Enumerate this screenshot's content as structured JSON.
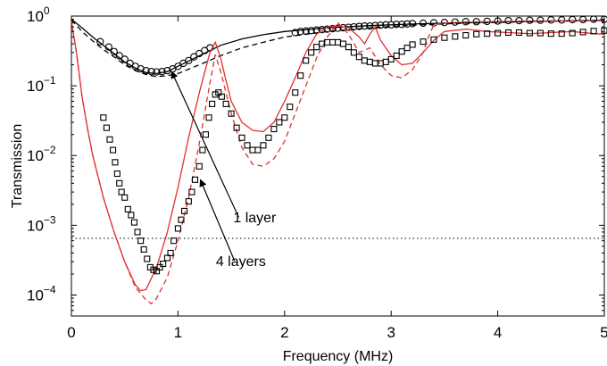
{
  "chart_data": {
    "type": "line",
    "title": "",
    "xlabel": "Frequency (MHz)",
    "ylabel": "Transmission",
    "xlim": [
      0,
      5
    ],
    "ylim": [
      5e-05,
      1
    ],
    "yscale": "log",
    "xticks": [
      0,
      1,
      2,
      3,
      4,
      5
    ],
    "yticks": [
      {
        "value": 1,
        "base": "10",
        "exp": "0"
      },
      {
        "value": 0.1,
        "base": "10",
        "exp": "−1"
      },
      {
        "value": 0.01,
        "base": "10",
        "exp": "−2"
      },
      {
        "value": 0.001,
        "base": "10",
        "exp": "−3"
      },
      {
        "value": 0.0001,
        "base": "10",
        "exp": "−4"
      }
    ],
    "grid": false,
    "reference_line": {
      "y": 0.00065,
      "style": "dotted",
      "color": "#000000"
    },
    "annotations": [
      {
        "text": "1 layer",
        "text_at": [
          1.72,
          0.0011
        ],
        "arrow_from": [
          1.57,
          0.0013
        ],
        "arrow_to": [
          0.94,
          0.16
        ]
      },
      {
        "text": "4 layers",
        "text_at": [
          1.59,
          0.00026
        ],
        "arrow_from": [
          1.53,
          0.00031
        ],
        "arrow_to": [
          1.21,
          0.0045
        ]
      }
    ],
    "series": [
      {
        "style": "solid",
        "color": "#000000",
        "marker": "none",
        "x": [
          0,
          0.1,
          0.2,
          0.3,
          0.4,
          0.5,
          0.6,
          0.7,
          0.8,
          0.9,
          1.0,
          1.2,
          1.4,
          1.6,
          1.8,
          2.0,
          2.4,
          2.8,
          3.2,
          3.6,
          4.0,
          4.5,
          5.0
        ],
        "y": [
          0.9,
          0.68,
          0.5,
          0.38,
          0.29,
          0.22,
          0.18,
          0.155,
          0.15,
          0.16,
          0.19,
          0.27,
          0.38,
          0.47,
          0.54,
          0.6,
          0.68,
          0.73,
          0.77,
          0.8,
          0.82,
          0.85,
          0.87
        ]
      },
      {
        "style": "dashed",
        "color": "#000000",
        "marker": "none",
        "x": [
          0,
          0.1,
          0.2,
          0.3,
          0.4,
          0.5,
          0.6,
          0.7,
          0.8,
          0.9,
          1.0,
          1.2,
          1.4,
          1.6,
          1.8,
          2.0,
          2.4,
          2.8,
          3.2,
          3.6,
          4.0,
          4.5,
          5.0
        ],
        "y": [
          0.88,
          0.6,
          0.44,
          0.33,
          0.26,
          0.2,
          0.165,
          0.145,
          0.135,
          0.14,
          0.15,
          0.2,
          0.27,
          0.35,
          0.42,
          0.5,
          0.6,
          0.68,
          0.74,
          0.78,
          0.81,
          0.84,
          0.86
        ]
      },
      {
        "style": "none",
        "color": "#000000",
        "marker": "circle",
        "x": [
          0.27,
          0.35,
          0.4,
          0.45,
          0.5,
          0.55,
          0.6,
          0.65,
          0.7,
          0.75,
          0.8,
          0.85,
          0.9,
          0.95,
          1.0,
          1.05,
          1.1,
          1.15,
          1.2,
          1.25,
          1.3,
          2.1,
          2.15,
          2.2,
          2.25,
          2.3,
          2.35,
          2.4,
          2.45,
          2.5,
          2.55,
          2.6,
          2.65,
          2.7,
          2.75,
          2.8,
          2.85,
          2.9,
          2.95,
          3.0,
          3.05,
          3.1,
          3.15,
          3.2,
          3.3,
          3.4,
          3.5,
          3.6,
          3.7,
          3.8,
          3.9,
          4.0,
          4.1,
          4.2,
          4.3,
          4.4,
          4.5,
          4.6,
          4.7,
          4.8,
          4.9,
          5.0
        ],
        "y": [
          0.43,
          0.36,
          0.31,
          0.27,
          0.24,
          0.21,
          0.19,
          0.175,
          0.165,
          0.16,
          0.158,
          0.16,
          0.165,
          0.175,
          0.19,
          0.21,
          0.23,
          0.26,
          0.29,
          0.32,
          0.35,
          0.58,
          0.6,
          0.61,
          0.62,
          0.63,
          0.64,
          0.65,
          0.66,
          0.67,
          0.68,
          0.69,
          0.7,
          0.71,
          0.72,
          0.72,
          0.73,
          0.74,
          0.75,
          0.75,
          0.76,
          0.76,
          0.77,
          0.78,
          0.79,
          0.8,
          0.81,
          0.82,
          0.83,
          0.83,
          0.84,
          0.85,
          0.86,
          0.86,
          0.87,
          0.87,
          0.88,
          0.88,
          0.89,
          0.89,
          0.9,
          0.9
        ]
      },
      {
        "style": "solid",
        "color": "#e03030",
        "marker": "none",
        "x": [
          0,
          0.05,
          0.1,
          0.15,
          0.2,
          0.3,
          0.4,
          0.5,
          0.6,
          0.65,
          0.7,
          0.8,
          0.9,
          1.0,
          1.1,
          1.2,
          1.3,
          1.35,
          1.4,
          1.45,
          1.5,
          1.6,
          1.7,
          1.8,
          1.9,
          2.0,
          2.1,
          2.2,
          2.3,
          2.4,
          2.5,
          2.6,
          2.7,
          2.75,
          2.8,
          2.85,
          2.9,
          3.0,
          3.1,
          3.2,
          3.3,
          3.4,
          3.5,
          3.7,
          3.9,
          4.1,
          4.3,
          4.5,
          4.7,
          4.9,
          5.0
        ],
        "y": [
          0.85,
          0.28,
          0.07,
          0.025,
          0.01,
          0.0025,
          0.0008,
          0.0003,
          0.00014,
          0.000115,
          0.00012,
          0.00025,
          0.0008,
          0.0035,
          0.018,
          0.08,
          0.3,
          0.42,
          0.25,
          0.12,
          0.06,
          0.03,
          0.023,
          0.022,
          0.03,
          0.06,
          0.13,
          0.3,
          0.55,
          0.7,
          0.72,
          0.68,
          0.5,
          0.4,
          0.55,
          0.7,
          0.45,
          0.27,
          0.2,
          0.21,
          0.3,
          0.45,
          0.6,
          0.65,
          0.6,
          0.58,
          0.56,
          0.58,
          0.6,
          0.56,
          0.55
        ]
      },
      {
        "style": "dashed",
        "color": "#e03030",
        "marker": "none",
        "x": [
          0,
          0.05,
          0.1,
          0.15,
          0.2,
          0.3,
          0.4,
          0.5,
          0.6,
          0.7,
          0.75,
          0.8,
          0.9,
          1.0,
          1.1,
          1.2,
          1.3,
          1.35,
          1.4,
          1.5,
          1.6,
          1.7,
          1.8,
          1.9,
          2.0,
          2.1,
          2.2,
          2.3,
          2.4,
          2.5,
          2.6,
          2.7,
          2.8,
          2.9,
          3.0,
          3.1,
          3.2,
          3.3,
          3.35,
          3.4,
          3.5,
          3.7,
          3.9,
          4.1,
          4.3,
          4.5,
          4.7,
          4.9,
          5.0
        ],
        "y": [
          0.85,
          0.28,
          0.07,
          0.025,
          0.01,
          0.0025,
          0.0008,
          0.0003,
          0.00013,
          8.5e-05,
          7.5e-05,
          9e-05,
          0.00018,
          0.0006,
          0.0025,
          0.015,
          0.11,
          0.28,
          0.16,
          0.04,
          0.013,
          0.0075,
          0.007,
          0.009,
          0.016,
          0.04,
          0.1,
          0.25,
          0.5,
          0.8,
          0.55,
          0.3,
          0.35,
          0.2,
          0.14,
          0.13,
          0.17,
          0.3,
          0.5,
          0.75,
          0.8,
          0.82,
          0.83,
          0.84,
          0.85,
          0.85,
          0.86,
          0.86,
          0.86
        ]
      },
      {
        "style": "none",
        "color": "#000000",
        "marker": "square",
        "x": [
          0.3,
          0.33,
          0.36,
          0.39,
          0.41,
          0.43,
          0.45,
          0.47,
          0.5,
          0.53,
          0.56,
          0.59,
          0.62,
          0.65,
          0.68,
          0.71,
          0.74,
          0.77,
          0.8,
          0.83,
          0.86,
          0.9,
          0.93,
          0.96,
          1.0,
          1.03,
          1.06,
          1.1,
          1.13,
          1.16,
          1.2,
          1.23,
          1.26,
          1.29,
          1.32,
          1.35,
          1.38,
          1.41,
          1.45,
          1.5,
          1.55,
          1.6,
          1.65,
          1.7,
          1.75,
          1.8,
          1.85,
          1.9,
          1.95,
          2.0,
          2.05,
          2.1,
          2.15,
          2.2,
          2.25,
          2.3,
          2.35,
          2.4,
          2.45,
          2.5,
          2.55,
          2.6,
          2.65,
          2.7,
          2.75,
          2.8,
          2.85,
          2.9,
          2.95,
          3.0,
          3.05,
          3.1,
          3.15,
          3.2,
          3.3,
          3.4,
          3.5,
          3.6,
          3.7,
          3.8,
          3.9,
          4.0,
          4.1,
          4.2,
          4.3,
          4.4,
          4.5,
          4.6,
          4.7,
          4.8,
          4.9,
          5.0
        ],
        "y": [
          0.035,
          0.025,
          0.017,
          0.012,
          0.008,
          0.0055,
          0.004,
          0.003,
          0.0025,
          0.0017,
          0.0014,
          0.0011,
          0.0008,
          0.0006,
          0.00045,
          0.00033,
          0.00025,
          0.00023,
          0.00022,
          0.00025,
          0.00028,
          0.00034,
          0.0004,
          0.0006,
          0.0009,
          0.0012,
          0.0016,
          0.0022,
          0.003,
          0.0045,
          0.007,
          0.012,
          0.02,
          0.035,
          0.055,
          0.075,
          0.08,
          0.07,
          0.055,
          0.04,
          0.025,
          0.018,
          0.014,
          0.012,
          0.012,
          0.014,
          0.018,
          0.024,
          0.03,
          0.035,
          0.05,
          0.08,
          0.14,
          0.23,
          0.3,
          0.36,
          0.4,
          0.42,
          0.42,
          0.42,
          0.4,
          0.36,
          0.3,
          0.26,
          0.23,
          0.22,
          0.21,
          0.21,
          0.22,
          0.24,
          0.27,
          0.31,
          0.35,
          0.39,
          0.43,
          0.46,
          0.49,
          0.51,
          0.53,
          0.55,
          0.56,
          0.57,
          0.58,
          0.58,
          0.57,
          0.57,
          0.56,
          0.56,
          0.57,
          0.59,
          0.61,
          0.62
        ]
      }
    ]
  }
}
